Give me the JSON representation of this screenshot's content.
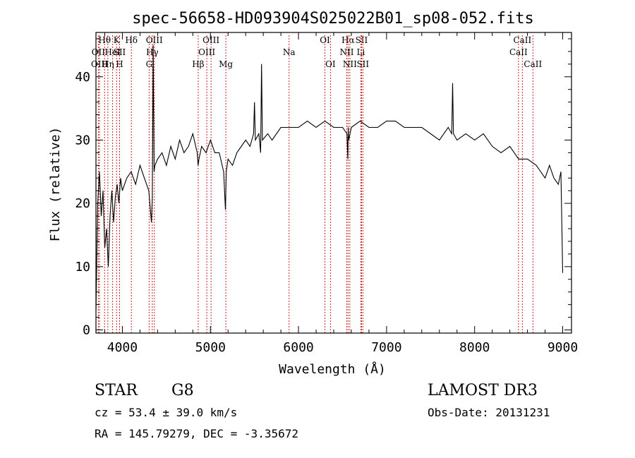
{
  "chart_data": {
    "type": "line",
    "title": "spec-56658-HD093904S025022B01_sp08-052.fits",
    "xlabel": "Wavelength (Å)",
    "ylabel": "Flux (relative)",
    "xlim": [
      3700,
      9100
    ],
    "ylim": [
      -0.5,
      47
    ],
    "x_ticks": [
      4000,
      5000,
      6000,
      7000,
      8000,
      9000
    ],
    "y_ticks": [
      0,
      10,
      20,
      30,
      40
    ],
    "grid": false,
    "series": [
      {
        "color": "#000000",
        "x": [
          3700,
          3720,
          3740,
          3760,
          3780,
          3800,
          3820,
          3840,
          3860,
          3880,
          3900,
          3920,
          3940,
          3960,
          3980,
          4000,
          4050,
          4100,
          4150,
          4200,
          4250,
          4300,
          4330,
          4340,
          4350,
          4360,
          4370,
          4400,
          4450,
          4500,
          4550,
          4600,
          4650,
          4700,
          4750,
          4800,
          4850,
          4860,
          4870,
          4900,
          4950,
          5000,
          5050,
          5100,
          5150,
          5170,
          5180,
          5200,
          5250,
          5300,
          5400,
          5450,
          5490,
          5500,
          5510,
          5550,
          5570,
          5580,
          5590,
          5650,
          5700,
          5800,
          5900,
          6000,
          6100,
          6200,
          6300,
          6400,
          6500,
          6550,
          6560,
          6565,
          6570,
          6600,
          6700,
          6800,
          6900,
          7000,
          7100,
          7200,
          7300,
          7400,
          7500,
          7600,
          7700,
          7740,
          7750,
          7760,
          7800,
          7900,
          8000,
          8100,
          8200,
          8300,
          8400,
          8500,
          8600,
          8700,
          8800,
          8850,
          8900,
          8950,
          8980,
          9000
        ],
        "y": [
          3,
          20,
          25,
          18,
          22,
          13,
          16,
          10,
          18,
          22,
          17,
          21,
          23,
          20,
          24,
          22,
          24,
          25,
          23,
          26,
          24,
          22,
          17,
          21,
          45,
          25,
          26,
          27,
          28,
          26,
          29,
          27,
          30,
          28,
          29,
          31,
          28,
          26,
          27,
          29,
          28,
          30,
          28,
          28,
          25,
          19,
          25,
          27,
          26,
          28,
          30,
          29,
          31,
          36,
          30,
          31,
          28,
          42,
          30,
          31,
          30,
          32,
          32,
          32,
          33,
          32,
          33,
          32,
          32,
          31,
          27,
          32,
          30,
          32,
          33,
          32,
          32,
          33,
          33,
          32,
          32,
          32,
          31,
          30,
          32,
          31,
          39,
          31,
          30,
          31,
          30,
          31,
          29,
          28,
          29,
          27,
          27,
          26,
          24,
          26,
          24,
          23,
          25,
          9
        ]
      }
    ],
    "line_markers": [
      {
        "label": "Hθ",
        "x": 3798,
        "row": 1
      },
      {
        "label": "OII",
        "x": 3727,
        "row": 2
      },
      {
        "label": "OIII",
        "x": 3740,
        "row": 3
      },
      {
        "label": "Hη",
        "x": 3835,
        "row": 3
      },
      {
        "label": "K",
        "x": 3934,
        "row": 1
      },
      {
        "label": "HeI",
        "x": 3889,
        "row": 2
      },
      {
        "label": "SII",
        "x": 3968,
        "row": 2
      },
      {
        "label": "H",
        "x": 3968,
        "row": 3
      },
      {
        "label": "Hδ",
        "x": 4102,
        "row": 1
      },
      {
        "label": "OIII",
        "x": 4363,
        "row": 1
      },
      {
        "label": "Hγ",
        "x": 4340,
        "row": 2
      },
      {
        "label": "G",
        "x": 4304,
        "row": 3
      },
      {
        "label": "OIII",
        "x": 5007,
        "row": 1
      },
      {
        "label": "OIII",
        "x": 4959,
        "row": 2
      },
      {
        "label": "Hβ",
        "x": 4861,
        "row": 3
      },
      {
        "label": "Mg",
        "x": 5175,
        "row": 3
      },
      {
        "label": "Na",
        "x": 5893,
        "row": 2
      },
      {
        "label": "OI",
        "x": 6300,
        "row": 1
      },
      {
        "label": "OI",
        "x": 6363,
        "row": 3
      },
      {
        "label": "Hα",
        "x": 6563,
        "row": 1
      },
      {
        "label": "SII",
        "x": 6716,
        "row": 1
      },
      {
        "label": "NII",
        "x": 6548,
        "row": 2
      },
      {
        "label": "Li",
        "x": 6708,
        "row": 2
      },
      {
        "label": "NII",
        "x": 6583,
        "row": 3
      },
      {
        "label": "SII",
        "x": 6731,
        "row": 3
      },
      {
        "label": "CaII",
        "x": 8542,
        "row": 1
      },
      {
        "label": "CaII",
        "x": 8498,
        "row": 2
      },
      {
        "label": "CaII",
        "x": 8662,
        "row": 3
      }
    ]
  },
  "info": {
    "object_class": "STAR",
    "subclass": "G8",
    "redshift": "cz = 53.4 ± 39.0 km/s",
    "coords": "RA = 145.79279, DEC =  -3.35672",
    "survey": "LAMOST DR3",
    "obs_date": "Obs-Date: 20131231"
  }
}
